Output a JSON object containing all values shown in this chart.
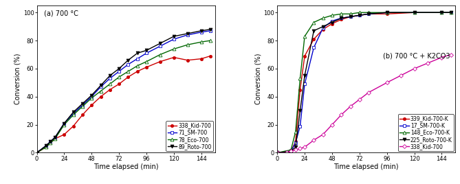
{
  "panel_a": {
    "title": "(a) 700 °C",
    "xlabel": "Time elapsed (min)",
    "ylabel": "Conversion (%)",
    "xlim": [
      0,
      156
    ],
    "ylim": [
      0,
      105
    ],
    "xticks": [
      0,
      24,
      48,
      72,
      96,
      120,
      144
    ],
    "yticks": [
      0,
      20,
      40,
      60,
      80,
      100
    ],
    "series": [
      {
        "label": "338_Kid-700",
        "color": "#cc0000",
        "marker": "o",
        "markersize": 3,
        "markerfacecolor": "#cc0000",
        "linestyle": "-",
        "x": [
          0,
          8,
          12,
          16,
          24,
          32,
          40,
          48,
          56,
          64,
          72,
          80,
          88,
          96,
          108,
          120,
          132,
          144,
          152
        ],
        "y": [
          0,
          4,
          7,
          10,
          13,
          19,
          27,
          34,
          40,
          45,
          49,
          54,
          58,
          61,
          65,
          68,
          66,
          67,
          69
        ]
      },
      {
        "label": "71_SM-700",
        "color": "#0000cc",
        "marker": "s",
        "markersize": 3,
        "markerfacecolor": "white",
        "linestyle": "-",
        "x": [
          0,
          8,
          12,
          16,
          24,
          32,
          40,
          48,
          56,
          64,
          72,
          80,
          88,
          96,
          108,
          120,
          132,
          144,
          152
        ],
        "y": [
          0,
          5,
          8,
          11,
          21,
          28,
          34,
          40,
          47,
          53,
          58,
          63,
          67,
          71,
          76,
          81,
          84,
          86,
          87
        ]
      },
      {
        "label": "78_Eco-700",
        "color": "#006600",
        "marker": "^",
        "markersize": 3.5,
        "markerfacecolor": "white",
        "linestyle": "-",
        "x": [
          0,
          8,
          12,
          16,
          24,
          32,
          40,
          48,
          56,
          64,
          72,
          80,
          88,
          96,
          108,
          120,
          132,
          144,
          152
        ],
        "y": [
          0,
          4,
          7,
          10,
          20,
          27,
          33,
          39,
          44,
          49,
          54,
          58,
          62,
          65,
          70,
          74,
          77,
          79,
          80
        ]
      },
      {
        "label": "89_Roto-700",
        "color": "#000000",
        "marker": "v",
        "markersize": 3.5,
        "markerfacecolor": "#000000",
        "linestyle": "-",
        "x": [
          0,
          8,
          12,
          16,
          24,
          32,
          40,
          48,
          56,
          64,
          72,
          80,
          88,
          96,
          108,
          120,
          132,
          144,
          152
        ],
        "y": [
          0,
          5,
          8,
          11,
          21,
          29,
          35,
          41,
          48,
          55,
          60,
          66,
          71,
          73,
          78,
          83,
          85,
          87,
          88
        ]
      }
    ]
  },
  "panel_b": {
    "title": "(b) 700 °C + K2CO3",
    "xlabel": "Time elapsed (min)",
    "ylabel": "Conversion (%)",
    "xlim": [
      0,
      156
    ],
    "ylim": [
      0,
      105
    ],
    "xticks": [
      0,
      24,
      48,
      72,
      96,
      120,
      144
    ],
    "yticks": [
      0,
      20,
      40,
      60,
      80,
      100
    ],
    "series": [
      {
        "label": "339_Kid-700-K",
        "color": "#cc0000",
        "marker": "o",
        "markersize": 3,
        "markerfacecolor": "#cc0000",
        "linestyle": "-",
        "x": [
          0,
          12,
          16,
          20,
          24,
          32,
          40,
          48,
          56,
          64,
          72,
          80,
          96,
          120,
          144,
          152
        ],
        "y": [
          0,
          1,
          8,
          45,
          69,
          81,
          88,
          92,
          95,
          97,
          98,
          99,
          99,
          100,
          100,
          100
        ]
      },
      {
        "label": "17_SM-700-K",
        "color": "#0000cc",
        "marker": "s",
        "markersize": 3,
        "markerfacecolor": "white",
        "linestyle": "-",
        "x": [
          0,
          12,
          16,
          20,
          24,
          32,
          40,
          48,
          56,
          64,
          72,
          80,
          96,
          120,
          144,
          152
        ],
        "y": [
          0,
          1,
          7,
          19,
          49,
          75,
          89,
          94,
          96,
          97,
          98,
          99,
          100,
          100,
          100,
          100
        ]
      },
      {
        "label": "148_Eco-700-K",
        "color": "#006600",
        "marker": "^",
        "markersize": 3.5,
        "markerfacecolor": "white",
        "linestyle": "-",
        "x": [
          0,
          12,
          16,
          20,
          24,
          32,
          40,
          48,
          56,
          64,
          72,
          80,
          96,
          120,
          144,
          152
        ],
        "y": [
          0,
          2,
          15,
          53,
          83,
          93,
          96,
          98,
          99,
          99,
          100,
          100,
          100,
          100,
          100,
          100
        ]
      },
      {
        "label": "225_Roto-700-K",
        "color": "#000000",
        "marker": "v",
        "markersize": 3.5,
        "markerfacecolor": "#000000",
        "linestyle": "-",
        "x": [
          0,
          12,
          16,
          20,
          24,
          32,
          40,
          48,
          56,
          64,
          72,
          80,
          96,
          120,
          144,
          152
        ],
        "y": [
          0,
          1,
          4,
          30,
          55,
          87,
          90,
          93,
          96,
          97,
          98,
          99,
          100,
          100,
          100,
          100
        ]
      },
      {
        "label": "338_Kid-700",
        "color": "#cc0099",
        "marker": "D",
        "markersize": 3,
        "markerfacecolor": "white",
        "linestyle": "-",
        "x": [
          0,
          8,
          12,
          16,
          20,
          24,
          32,
          40,
          48,
          56,
          64,
          72,
          80,
          96,
          108,
          120,
          132,
          144,
          152
        ],
        "y": [
          0,
          0,
          1,
          2,
          3,
          4,
          9,
          13,
          20,
          27,
          33,
          38,
          43,
          50,
          55,
          60,
          64,
          68,
          70
        ]
      }
    ]
  },
  "figure": {
    "figsize": [
      6.69,
      2.68
    ],
    "dpi": 100,
    "tick_fontsize": 6,
    "label_fontsize": 7,
    "title_fontsize": 7,
    "legend_fontsize": 5.5,
    "linewidth": 1.0
  }
}
